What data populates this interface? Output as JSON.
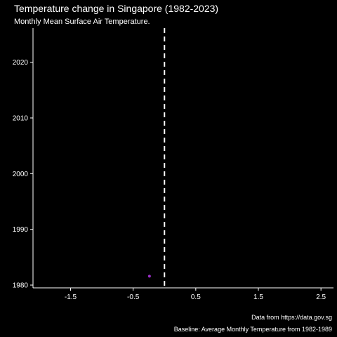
{
  "chart_data": {
    "type": "scatter",
    "title": "Temperature change in Singapore (1982-2023)",
    "subtitle": "Monthly Mean Surface Air Temperature.",
    "xlabel": "",
    "ylabel": "",
    "xlim": [
      -2.1,
      2.7
    ],
    "ylim": [
      1979.5,
      2025.5
    ],
    "x_ticks": [
      -1.5,
      -0.5,
      0.5,
      1.5,
      2.5
    ],
    "x_tick_labels": [
      "-1.5",
      "-0.5",
      "0.5",
      "1.5",
      "2.5"
    ],
    "y_ticks": [
      1980,
      1990,
      2000,
      2010,
      2020
    ],
    "y_tick_labels": [
      "1980",
      "1990",
      "2000",
      "2010",
      "2020"
    ],
    "grid": false,
    "reference_line": {
      "x": 0,
      "style": "dashed",
      "color": "#ffffff"
    },
    "points": [
      {
        "x": -0.24,
        "y": 1981.6,
        "color": "#9b30c8"
      }
    ],
    "captions": {
      "source": "Data from https://data.gov.sg",
      "baseline": "Baseline: Average Monthly Temperature from 1982-1989"
    }
  }
}
